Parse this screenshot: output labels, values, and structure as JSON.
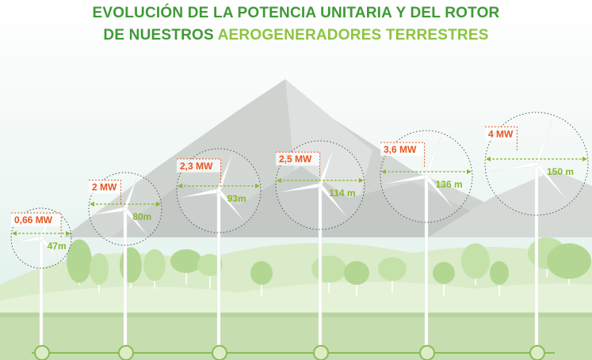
{
  "title": {
    "line1": "EVOLUCIÓN DE LA POTENCIA UNITARIA Y DEL ROTOR",
    "line2_prefix": "DE NUESTROS ",
    "line2_highlight": "AEROGENERADORES TERRESTRES"
  },
  "colors": {
    "title_green": "#3f9a36",
    "accent_green": "#8cc43f",
    "power_orange": "#e8541e",
    "diameter_green": "#8ab82e",
    "sky_top": "#ffffff",
    "sky_bottom": "#e4f1ed",
    "mountain": "#c8ccc9",
    "tree_green": "#b7d99a",
    "ground_green": "#cfe3b8"
  },
  "turbines": [
    {
      "power": "0,66 MW",
      "diameter": "47m"
    },
    {
      "power": "2 MW",
      "diameter": "80m"
    },
    {
      "power": "2,3 MW",
      "diameter": "93m"
    },
    {
      "power": "2,5 MW",
      "diameter": "114 m"
    },
    {
      "power": "3,6 MW",
      "diameter": "136 m"
    },
    {
      "power": "4 MW",
      "diameter": "150 m"
    }
  ]
}
